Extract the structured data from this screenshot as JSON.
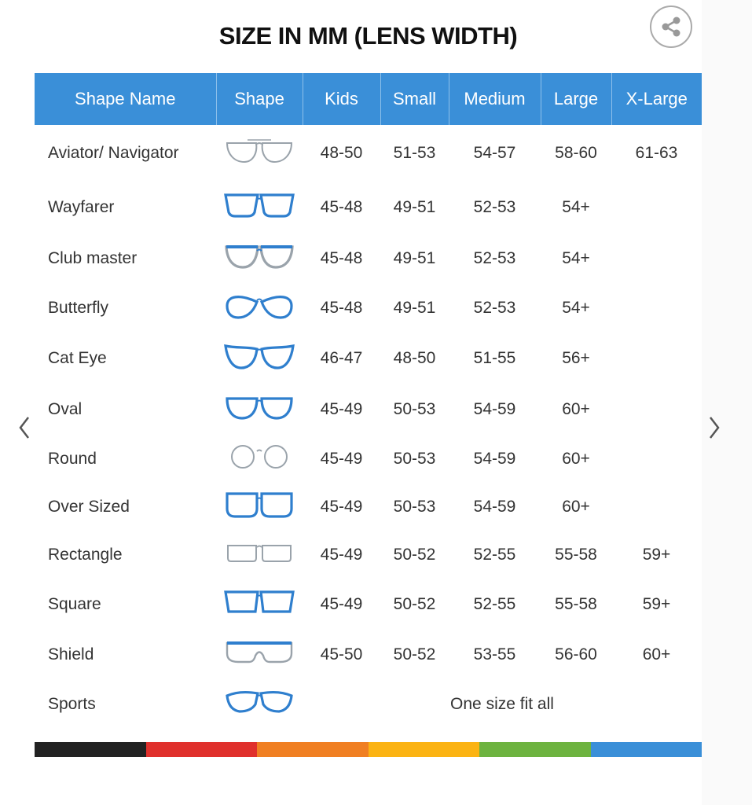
{
  "title": "SIZE IN MM (LENS WIDTH)",
  "share_icon": "share-icon",
  "nav": {
    "prev_icon": "chevron-left-icon",
    "next_icon": "chevron-right-icon"
  },
  "colors": {
    "header": "#3a8fd8",
    "frame_blue": "#2f7fce",
    "frame_grey": "#9aa3ab"
  },
  "columns": [
    "Shape Name",
    "Shape",
    "Kids",
    "Small",
    "Medium",
    "Large",
    "X-Large"
  ],
  "rows": [
    {
      "name": "Aviator/ Navigator",
      "icon": "aviator",
      "tone": "grey",
      "kids": "48-50",
      "small": "51-53",
      "medium": "54-57",
      "large": "58-60",
      "xlarge": "61-63"
    },
    {
      "name": "Wayfarer",
      "icon": "wayfarer",
      "tone": "blue",
      "kids": "45-48",
      "small": "49-51",
      "medium": "52-53",
      "large": "54+",
      "xlarge": ""
    },
    {
      "name": "Club master",
      "icon": "clubmaster",
      "tone": "mixed",
      "kids": "45-48",
      "small": "49-51",
      "medium": "52-53",
      "large": "54+",
      "xlarge": ""
    },
    {
      "name": "Butterfly",
      "icon": "butterfly",
      "tone": "blue",
      "kids": "45-48",
      "small": "49-51",
      "medium": "52-53",
      "large": "54+",
      "xlarge": ""
    },
    {
      "name": "Cat Eye",
      "icon": "cateye",
      "tone": "blue",
      "kids": "46-47",
      "small": "48-50",
      "medium": "51-55",
      "large": "56+",
      "xlarge": ""
    },
    {
      "name": "Oval",
      "icon": "oval",
      "tone": "blue",
      "kids": "45-49",
      "small": "50-53",
      "medium": "54-59",
      "large": "60+",
      "xlarge": ""
    },
    {
      "name": "Round",
      "icon": "round",
      "tone": "grey",
      "kids": "45-49",
      "small": "50-53",
      "medium": "54-59",
      "large": "60+",
      "xlarge": ""
    },
    {
      "name": "Over Sized",
      "icon": "oversized",
      "tone": "blue",
      "kids": "45-49",
      "small": "50-53",
      "medium": "54-59",
      "large": "60+",
      "xlarge": ""
    },
    {
      "name": "Rectangle",
      "icon": "rectangle",
      "tone": "grey",
      "kids": "45-49",
      "small": "50-52",
      "medium": "52-55",
      "large": "55-58",
      "xlarge": "59+"
    },
    {
      "name": "Square",
      "icon": "square",
      "tone": "blue",
      "kids": "45-49",
      "small": "50-52",
      "medium": "52-55",
      "large": "55-58",
      "xlarge": "59+"
    },
    {
      "name": "Shield",
      "icon": "shield",
      "tone": "mixed",
      "kids": "45-50",
      "small": "50-52",
      "medium": "53-55",
      "large": "56-60",
      "xlarge": "60+"
    },
    {
      "name": "Sports",
      "icon": "sports",
      "tone": "blue",
      "note": "One size fit all"
    }
  ],
  "color_bar": [
    "#222222",
    "#e0302c",
    "#f07f22",
    "#fbb313",
    "#6db33f",
    "#3a8fd8"
  ]
}
